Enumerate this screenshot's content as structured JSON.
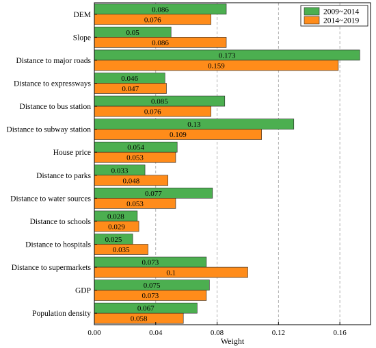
{
  "chart_data": {
    "type": "bar",
    "orientation": "horizontal",
    "categories": [
      "DEM",
      "Slope",
      "Distance to major roads",
      "Distance to expressways",
      "Distance to bus station",
      "Distance to subway station",
      "House price",
      "Distance to parks",
      "Distance to water sources",
      "Distance to schools",
      "Distance to hospitals",
      "Distance to supermarkets",
      "GDP",
      "Population density"
    ],
    "series": [
      {
        "name": "2009~2014",
        "color": "#4caf50",
        "values": [
          0.086,
          0.05,
          0.173,
          0.046,
          0.085,
          0.13,
          0.054,
          0.033,
          0.077,
          0.028,
          0.025,
          0.073,
          0.075,
          0.067
        ],
        "labels": [
          "0.086",
          "0.05",
          "0.173",
          "0.046",
          "0.085",
          "0.13",
          "0.054",
          "0.033",
          "0.077",
          "0.028",
          "0.025",
          "0.073",
          "0.075",
          "0.067"
        ]
      },
      {
        "name": "2014~2019",
        "color": "#ff8c1a",
        "values": [
          0.076,
          0.086,
          0.159,
          0.047,
          0.076,
          0.109,
          0.053,
          0.048,
          0.053,
          0.029,
          0.035,
          0.1,
          0.073,
          0.058
        ],
        "labels": [
          "0.076",
          "0.086",
          "0.159",
          "0.047",
          "0.076",
          "0.109",
          "0.053",
          "0.048",
          "0.053",
          "0.029",
          "0.035",
          "0.1",
          "0.073",
          "0.058"
        ]
      }
    ],
    "xlabel": "Weight",
    "ylabel": "",
    "xlim": [
      0,
      0.18
    ],
    "xticks": [
      0,
      0.04,
      0.08,
      0.12,
      0.16
    ],
    "xtick_labels": [
      "0.00",
      "0.04",
      "0.08",
      "0.12",
      "0.16"
    ],
    "grid": "vertical dashed",
    "legend_position": "top-right"
  }
}
